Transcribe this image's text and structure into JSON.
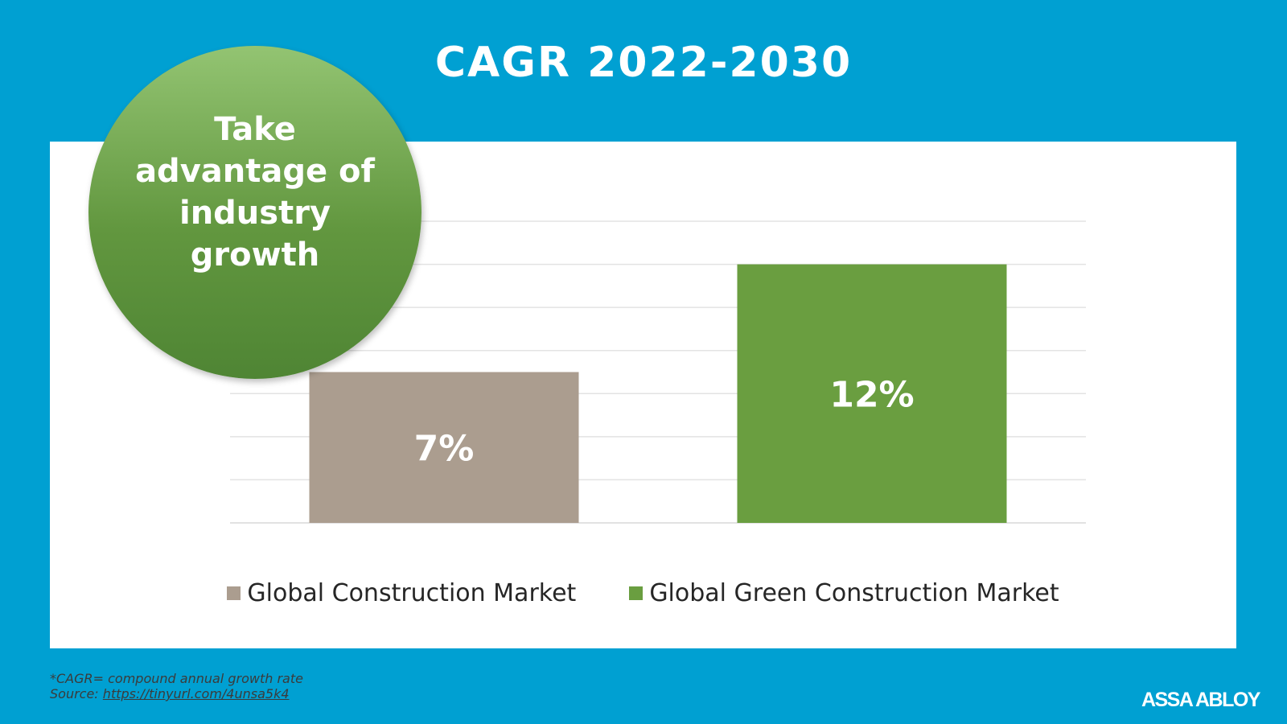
{
  "slide": {
    "title": "CAGR 2022-2030",
    "badge_text": "Take advantage of industry growth",
    "footnote_text": "*CAGR= compound annual growth rate",
    "source_label": "Source:",
    "source_link": "https://tinyurl.com/4unsa5k4",
    "logo": "ASSA ABLOY",
    "colors": {
      "background": "#00a0d2",
      "panel": "#ffffff",
      "badge": "#5f9a3f"
    }
  },
  "chart_data": {
    "type": "bar",
    "categories": [
      "Global Construction Market",
      "Global Green Construction Market"
    ],
    "values": [
      7,
      12
    ],
    "value_labels": [
      "7%",
      "12%"
    ],
    "colors": [
      "#ab9d8f",
      "#6a9e40"
    ],
    "ylim": [
      0,
      14
    ],
    "grid_step": 2,
    "grid": true,
    "legend_position": "bottom",
    "title": "",
    "xlabel": "",
    "ylabel": ""
  }
}
